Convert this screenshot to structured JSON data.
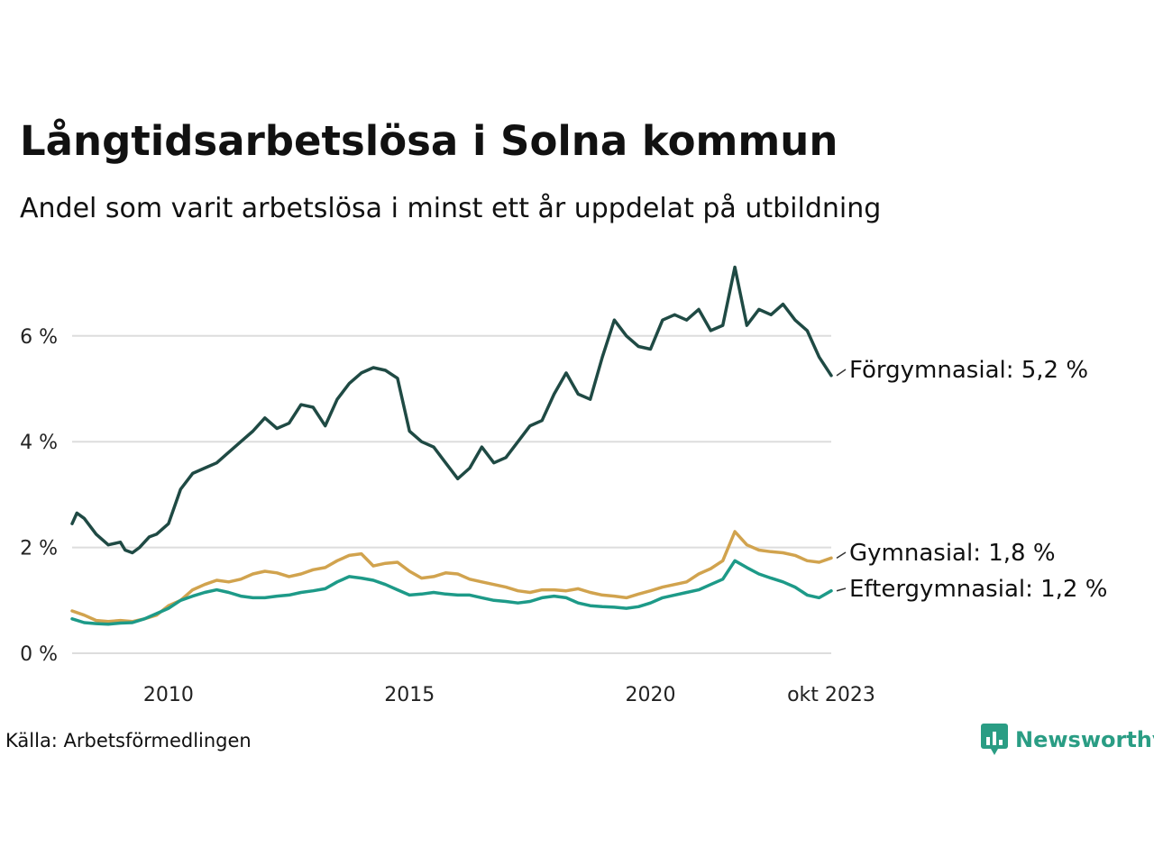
{
  "header": {
    "title": "Långtidsarbetslösa i Solna kommun",
    "subtitle": "Andel som varit arbetslösa i minst ett år uppdelat på utbildning"
  },
  "footer": {
    "source": "Källa: Arbetsförmedlingen",
    "brand": "Newsworthy"
  },
  "chart_data": {
    "type": "line",
    "title": "Långtidsarbetslösa i Solna kommun",
    "subtitle": "Andel som varit arbetslösa i minst ett år uppdelat på utbildning",
    "xlabel": "",
    "ylabel": "",
    "x_range": [
      2008.0,
      2023.75
    ],
    "ylim": [
      0,
      7.5
    ],
    "y_ticks": [
      0,
      2,
      4,
      6
    ],
    "y_tick_labels": [
      "0 %",
      "2 %",
      "4 %",
      "6 %"
    ],
    "x_ticks": [
      2010,
      2015,
      2020,
      2023.75
    ],
    "x_tick_labels": [
      "2010",
      "2015",
      "2020",
      "okt 2023"
    ],
    "grid": true,
    "legend": "direct labels at line ends",
    "series": [
      {
        "name": "Förgymnasial",
        "label": "Förgymnasial: 5,2 %",
        "color": "#1f4a44",
        "x": [
          2008.0,
          2008.1,
          2008.25,
          2008.5,
          2008.75,
          2009.0,
          2009.1,
          2009.25,
          2009.4,
          2009.5,
          2009.6,
          2009.75,
          2010.0,
          2010.25,
          2010.5,
          2010.75,
          2011.0,
          2011.25,
          2011.5,
          2011.75,
          2012.0,
          2012.25,
          2012.5,
          2012.75,
          2013.0,
          2013.25,
          2013.5,
          2013.75,
          2014.0,
          2014.25,
          2014.5,
          2014.75,
          2015.0,
          2015.25,
          2015.5,
          2015.75,
          2016.0,
          2016.25,
          2016.5,
          2016.75,
          2017.0,
          2017.25,
          2017.5,
          2017.75,
          2018.0,
          2018.25,
          2018.5,
          2018.75,
          2019.0,
          2019.25,
          2019.5,
          2019.75,
          2020.0,
          2020.25,
          2020.5,
          2020.75,
          2021.0,
          2021.25,
          2021.5,
          2021.75,
          2022.0,
          2022.25,
          2022.5,
          2022.75,
          2023.0,
          2023.25,
          2023.5,
          2023.75
        ],
        "values": [
          2.45,
          2.65,
          2.55,
          2.25,
          2.05,
          2.1,
          1.95,
          1.9,
          2.0,
          2.1,
          2.2,
          2.25,
          2.45,
          3.1,
          3.4,
          3.5,
          3.6,
          3.8,
          4.0,
          4.2,
          4.45,
          4.25,
          4.35,
          4.7,
          4.65,
          4.3,
          4.8,
          5.1,
          5.3,
          5.4,
          5.35,
          5.2,
          4.2,
          4.0,
          3.9,
          3.6,
          3.3,
          3.5,
          3.9,
          3.6,
          3.7,
          4.0,
          4.3,
          4.4,
          4.9,
          5.3,
          4.9,
          4.8,
          5.6,
          6.3,
          6.0,
          5.8,
          5.75,
          6.3,
          6.4,
          6.3,
          6.5,
          6.1,
          6.2,
          7.3,
          6.2,
          6.5,
          6.4,
          6.6,
          6.3,
          6.1,
          5.6,
          5.25
        ]
      },
      {
        "name": "Gymnasial",
        "label": "Gymnasial: 1,8 %",
        "color": "#d1a34e",
        "x": [
          2008.0,
          2008.25,
          2008.5,
          2008.75,
          2009.0,
          2009.25,
          2009.5,
          2009.75,
          2010.0,
          2010.25,
          2010.5,
          2010.75,
          2011.0,
          2011.25,
          2011.5,
          2011.75,
          2012.0,
          2012.25,
          2012.5,
          2012.75,
          2013.0,
          2013.25,
          2013.5,
          2013.75,
          2014.0,
          2014.25,
          2014.5,
          2014.75,
          2015.0,
          2015.25,
          2015.5,
          2015.75,
          2016.0,
          2016.25,
          2016.5,
          2016.75,
          2017.0,
          2017.25,
          2017.5,
          2017.75,
          2018.0,
          2018.25,
          2018.5,
          2018.75,
          2019.0,
          2019.25,
          2019.5,
          2019.75,
          2020.0,
          2020.25,
          2020.5,
          2020.75,
          2021.0,
          2021.25,
          2021.5,
          2021.75,
          2022.0,
          2022.25,
          2022.5,
          2022.75,
          2023.0,
          2023.25,
          2023.5,
          2023.75
        ],
        "values": [
          0.8,
          0.72,
          0.62,
          0.6,
          0.62,
          0.6,
          0.65,
          0.72,
          0.9,
          1.0,
          1.2,
          1.3,
          1.38,
          1.35,
          1.4,
          1.5,
          1.55,
          1.52,
          1.45,
          1.5,
          1.58,
          1.62,
          1.75,
          1.85,
          1.88,
          1.65,
          1.7,
          1.72,
          1.55,
          1.42,
          1.45,
          1.52,
          1.5,
          1.4,
          1.35,
          1.3,
          1.25,
          1.18,
          1.15,
          1.2,
          1.2,
          1.18,
          1.22,
          1.15,
          1.1,
          1.08,
          1.05,
          1.12,
          1.18,
          1.25,
          1.3,
          1.35,
          1.5,
          1.6,
          1.75,
          2.3,
          2.05,
          1.95,
          1.92,
          1.9,
          1.85,
          1.75,
          1.72,
          1.8
        ]
      },
      {
        "name": "Eftergymnasial",
        "label": "Eftergymnasial: 1,2 %",
        "color": "#1d9a88",
        "x": [
          2008.0,
          2008.25,
          2008.5,
          2008.75,
          2009.0,
          2009.25,
          2009.5,
          2009.75,
          2010.0,
          2010.25,
          2010.5,
          2010.75,
          2011.0,
          2011.25,
          2011.5,
          2011.75,
          2012.0,
          2012.25,
          2012.5,
          2012.75,
          2013.0,
          2013.25,
          2013.5,
          2013.75,
          2014.0,
          2014.25,
          2014.5,
          2014.75,
          2015.0,
          2015.25,
          2015.5,
          2015.75,
          2016.0,
          2016.25,
          2016.5,
          2016.75,
          2017.0,
          2017.25,
          2017.5,
          2017.75,
          2018.0,
          2018.25,
          2018.5,
          2018.75,
          2019.0,
          2019.25,
          2019.5,
          2019.75,
          2020.0,
          2020.25,
          2020.5,
          2020.75,
          2021.0,
          2021.25,
          2021.5,
          2021.75,
          2022.0,
          2022.25,
          2022.5,
          2022.75,
          2023.0,
          2023.25,
          2023.5,
          2023.75
        ],
        "values": [
          0.65,
          0.58,
          0.56,
          0.55,
          0.57,
          0.58,
          0.65,
          0.75,
          0.85,
          1.0,
          1.08,
          1.15,
          1.2,
          1.15,
          1.08,
          1.05,
          1.05,
          1.08,
          1.1,
          1.15,
          1.18,
          1.22,
          1.35,
          1.45,
          1.42,
          1.38,
          1.3,
          1.2,
          1.1,
          1.12,
          1.15,
          1.12,
          1.1,
          1.1,
          1.05,
          1.0,
          0.98,
          0.95,
          0.98,
          1.05,
          1.08,
          1.05,
          0.95,
          0.9,
          0.88,
          0.87,
          0.85,
          0.88,
          0.95,
          1.05,
          1.1,
          1.15,
          1.2,
          1.3,
          1.4,
          1.75,
          1.62,
          1.5,
          1.42,
          1.35,
          1.25,
          1.1,
          1.05,
          1.18
        ]
      }
    ]
  }
}
